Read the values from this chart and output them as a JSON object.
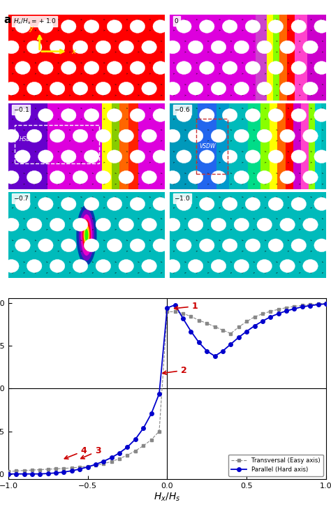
{
  "panels": [
    {
      "row": 0,
      "col": 0,
      "label": "$H_x/H_s = +1.0$",
      "type": "uniform_red",
      "arrow": true,
      "hsdw": false,
      "vsdw": false
    },
    {
      "row": 0,
      "col": 1,
      "label": "$0$",
      "type": "magenta_stripe",
      "arrow": false,
      "hsdw": false,
      "vsdw": false
    },
    {
      "row": 1,
      "col": 0,
      "label": "$-0.1$",
      "type": "magenta_hsdw",
      "arrow": false,
      "hsdw": true,
      "vsdw": false
    },
    {
      "row": 1,
      "col": 1,
      "label": "$-0.6$",
      "type": "cyan_vsdw",
      "arrow": false,
      "hsdw": false,
      "vsdw": true
    },
    {
      "row": 2,
      "col": 0,
      "label": "$-0.7$",
      "type": "cyan_blob",
      "arrow": false,
      "hsdw": false,
      "vsdw": false
    },
    {
      "row": 2,
      "col": 1,
      "label": "$-1.0$",
      "type": "uniform_cyan",
      "arrow": false,
      "hsdw": false,
      "vsdw": false
    }
  ],
  "transversal_x": [
    -1.0,
    -0.95,
    -0.9,
    -0.85,
    -0.8,
    -0.75,
    -0.7,
    -0.65,
    -0.6,
    -0.55,
    -0.5,
    -0.45,
    -0.4,
    -0.35,
    -0.3,
    -0.25,
    -0.2,
    -0.15,
    -0.1,
    -0.05,
    0.0,
    0.05,
    0.1,
    0.15,
    0.2,
    0.25,
    0.3,
    0.35,
    0.4,
    0.45,
    0.5,
    0.55,
    0.6,
    0.65,
    0.7,
    0.75,
    0.8,
    0.85,
    0.9,
    0.95,
    1.0
  ],
  "transversal_y": [
    -0.97,
    -0.965,
    -0.96,
    -0.955,
    -0.95,
    -0.945,
    -0.94,
    -0.935,
    -0.93,
    -0.92,
    -0.91,
    -0.9,
    -0.88,
    -0.855,
    -0.82,
    -0.78,
    -0.73,
    -0.67,
    -0.6,
    -0.5,
    0.9,
    0.9,
    0.88,
    0.845,
    0.8,
    0.765,
    0.725,
    0.685,
    0.645,
    0.72,
    0.785,
    0.84,
    0.875,
    0.905,
    0.928,
    0.948,
    0.963,
    0.975,
    0.984,
    0.992,
    1.0
  ],
  "parallel_x": [
    -1.0,
    -0.95,
    -0.9,
    -0.85,
    -0.8,
    -0.75,
    -0.7,
    -0.65,
    -0.6,
    -0.55,
    -0.5,
    -0.45,
    -0.4,
    -0.35,
    -0.3,
    -0.25,
    -0.2,
    -0.15,
    -0.1,
    -0.05,
    0.0,
    0.05,
    0.1,
    0.15,
    0.2,
    0.25,
    0.3,
    0.35,
    0.4,
    0.45,
    0.5,
    0.55,
    0.6,
    0.65,
    0.7,
    0.75,
    0.8,
    0.85,
    0.9,
    0.95,
    1.0
  ],
  "parallel_y": [
    -1.0,
    -1.0,
    -1.0,
    -1.0,
    -1.0,
    -0.995,
    -0.988,
    -0.978,
    -0.963,
    -0.943,
    -0.918,
    -0.888,
    -0.852,
    -0.808,
    -0.754,
    -0.685,
    -0.593,
    -0.465,
    -0.295,
    -0.06,
    0.945,
    0.98,
    0.82,
    0.67,
    0.54,
    0.44,
    0.38,
    0.44,
    0.52,
    0.6,
    0.67,
    0.735,
    0.79,
    0.84,
    0.878,
    0.91,
    0.935,
    0.957,
    0.972,
    0.984,
    0.993
  ],
  "transversal_color": "#888888",
  "parallel_color": "#0000cc",
  "legend_labels": [
    "Transversal (Easy axis)",
    "Parallel (Hard axis)"
  ],
  "annotation_color": "#cc0000"
}
